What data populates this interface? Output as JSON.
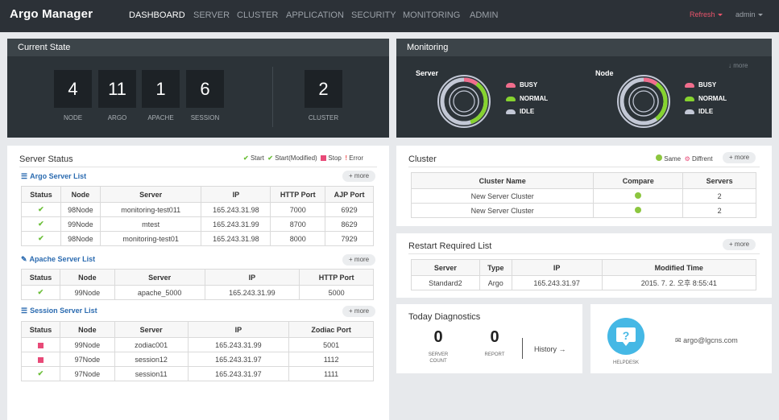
{
  "navbar": {
    "brand": "Argo Manager",
    "items": [
      "DASHBOARD",
      "SERVER",
      "CLUSTER",
      "APPLICATION",
      "SECURITY",
      "MONITORING",
      "ADMIN"
    ],
    "refresh_label": "Refresh",
    "user_label": "admin"
  },
  "current_state": {
    "title": "Current State",
    "tiles": [
      {
        "value": "4",
        "label": "NODE"
      },
      {
        "value": "11",
        "label": "ARGO"
      },
      {
        "value": "1",
        "label": "APACHE"
      },
      {
        "value": "6",
        "label": "SESSION"
      },
      {
        "value": "2",
        "label": "CLUSTER"
      }
    ]
  },
  "monitoring": {
    "title": "Monitoring",
    "more_label": "more",
    "gauges": [
      {
        "title": "Server",
        "busy_fraction": 0.1,
        "normal_fraction": 0.35
      },
      {
        "title": "Node",
        "busy_fraction": 0.1,
        "normal_fraction": 0.3
      }
    ],
    "legend": [
      "BUSY",
      "NORMAL",
      "IDLE"
    ],
    "colors": {
      "busy": "#f06d8c",
      "normal": "#86d32f",
      "idle": "#c3c8d6"
    }
  },
  "server_status": {
    "title": "Server Status",
    "legend": {
      "start": "Start",
      "start_modified": "Start(Modified)",
      "stop": "Stop",
      "error": "Error"
    },
    "more_label": "more",
    "argo": {
      "title": "Argo Server List",
      "columns": [
        "Status",
        "Node",
        "Server",
        "IP",
        "HTTP Port",
        "AJP Port"
      ],
      "rows": [
        [
          "98Node",
          "monitoring-test011",
          "165.243.31.98",
          "7000",
          "6929"
        ],
        [
          "99Node",
          "mtest",
          "165.243.31.99",
          "8700",
          "8629"
        ],
        [
          "98Node",
          "monitoring-test01",
          "165.243.31.98",
          "8000",
          "7929"
        ]
      ]
    },
    "apache": {
      "title": "Apache Server List",
      "columns": [
        "Status",
        "Node",
        "Server",
        "IP",
        "HTTP Port"
      ],
      "rows": [
        [
          "99Node",
          "apache_5000",
          "165.243.31.99",
          "5000"
        ]
      ]
    },
    "session": {
      "title": "Session Server List",
      "columns": [
        "Status",
        "Node",
        "Server",
        "IP",
        "Zodiac Port"
      ],
      "rows": [
        [
          "99Node",
          "zodiac001",
          "165.243.31.99",
          "5001"
        ],
        [
          "97Node",
          "session12",
          "165.243.31.97",
          "1112"
        ],
        [
          "97Node",
          "session11",
          "165.243.31.97",
          "1111"
        ]
      ],
      "statuses": [
        "stop",
        "stop",
        "start"
      ]
    }
  },
  "cluster": {
    "title": "Cluster",
    "legend": {
      "same": "Same",
      "different": "Diffrent"
    },
    "more_label": "more",
    "columns": [
      "Cluster Name",
      "Compare",
      "Servers"
    ],
    "rows": [
      [
        "New Server Cluster",
        "2"
      ],
      [
        "New Server Cluster",
        "2"
      ]
    ]
  },
  "restart": {
    "title": "Restart Required List",
    "more_label": "more",
    "columns": [
      "Server",
      "Type",
      "IP",
      "Modified Time"
    ],
    "rows": [
      [
        "Standard2",
        "Argo",
        "165.243.31.97",
        "2015. 7. 2. 오후 8:55:41"
      ]
    ]
  },
  "diagnostics": {
    "title": "Today Diagnostics",
    "server_count": "0",
    "server_count_label_1": "SERVER",
    "server_count_label_2": "COUNT",
    "report": "0",
    "report_label": "REPORT",
    "history_label": "History"
  },
  "helpdesk": {
    "label": "HELPDESK",
    "email": "argo@lgcns.com"
  }
}
